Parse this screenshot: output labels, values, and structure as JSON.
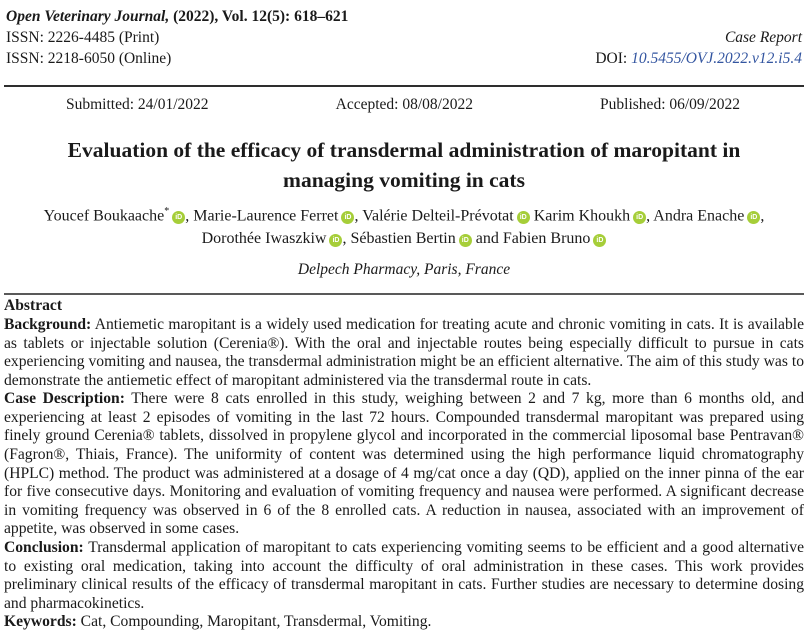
{
  "journal": {
    "name_italic": "Open Veterinary Journal,",
    "citation": " (2022), Vol. 12(5): 618–621",
    "issn_print": "ISSN: 2226-4485 (Print)",
    "issn_online": "ISSN: 2218-6050 (Online)",
    "article_type": "Case Report",
    "doi_label": "DOI: ",
    "doi_value": "10.5455/OVJ.2022.v12.i5.4"
  },
  "dates": {
    "submitted": "Submitted: 24/01/2022",
    "accepted": "Accepted: 08/08/2022",
    "published": "Published: 06/09/2022"
  },
  "title": {
    "line1": "Evaluation of the efficacy of transdermal administration of maropitant in",
    "line2": "managing vomiting in cats"
  },
  "icons": {
    "orcid": "iD"
  },
  "authors": {
    "line1": [
      {
        "name": "Youcef Boukaache",
        "sup": "*",
        "sep": ", "
      },
      {
        "name": "Marie-Laurence Ferret",
        "sep": ", "
      },
      {
        "name": "Valérie Delteil-Prévotat",
        "sep": " "
      },
      {
        "name": "Karim Khoukh",
        "sep": ", "
      },
      {
        "name": "Andra Enache",
        "sep": ","
      }
    ],
    "line2": [
      {
        "name": "Dorothée Iwaszkiw",
        "sep": ", "
      },
      {
        "name": "Sébastien Bertin",
        "sep": " and "
      },
      {
        "name": "Fabien Bruno",
        "sep": ""
      }
    ]
  },
  "affiliation": "Delpech Pharmacy, Paris, France",
  "abstract": {
    "heading": "Abstract",
    "sections": [
      {
        "label": "Background:",
        "text": " Antiemetic maropitant is a widely used medication for treating acute and chronic vomiting in cats. It is available as tablets or injectable solution (Cerenia®). With the oral and injectable routes being especially difficult to pursue in cats experiencing vomiting and nausea, the transdermal administration might be an efficient alternative. The aim of this study was to demonstrate the antiemetic effect of maropitant administered via the transdermal route in cats."
      },
      {
        "label": "Case Description:",
        "text": " There were 8 cats enrolled in this study, weighing between 2 and 7 kg, more than 6 months old, and experiencing at least 2 episodes of vomiting in the last 72 hours. Compounded transdermal maropitant was prepared using finely ground Cerenia® tablets, dissolved in propylene glycol and incorporated in the commercial liposomal base Pentravan® (Fagron®, Thiais, France). The uniformity of content was determined using the high performance liquid chromatography (HPLC) method. The product was administered at a dosage of 4 mg/cat once a day (QD), applied on the inner pinna of the ear for five consecutive days. Monitoring and evaluation of vomiting frequency and nausea were performed. A significant decrease in vomiting frequency was observed in 6 of the 8 enrolled cats. A reduction in nausea, associated with an improvement of appetite, was observed in some cases."
      },
      {
        "label": "Conclusion:",
        "text": " Transdermal application of maropitant to cats experiencing vomiting seems to be efficient and a good alternative to existing oral medication, taking into account the difficulty of oral administration in these cases. This work provides preliminary clinical results of the efficacy of transdermal maropitant in cats. Further studies are necessary to determine dosing and pharmacokinetics."
      },
      {
        "label": "Keywords:",
        "text": " Cat, Compounding, Maropitant, Transdermal, Vomiting."
      }
    ]
  },
  "colors": {
    "orcid_green": "#A6CE39",
    "doi_blue": "#3355A0",
    "text": "#1A1A1A"
  }
}
